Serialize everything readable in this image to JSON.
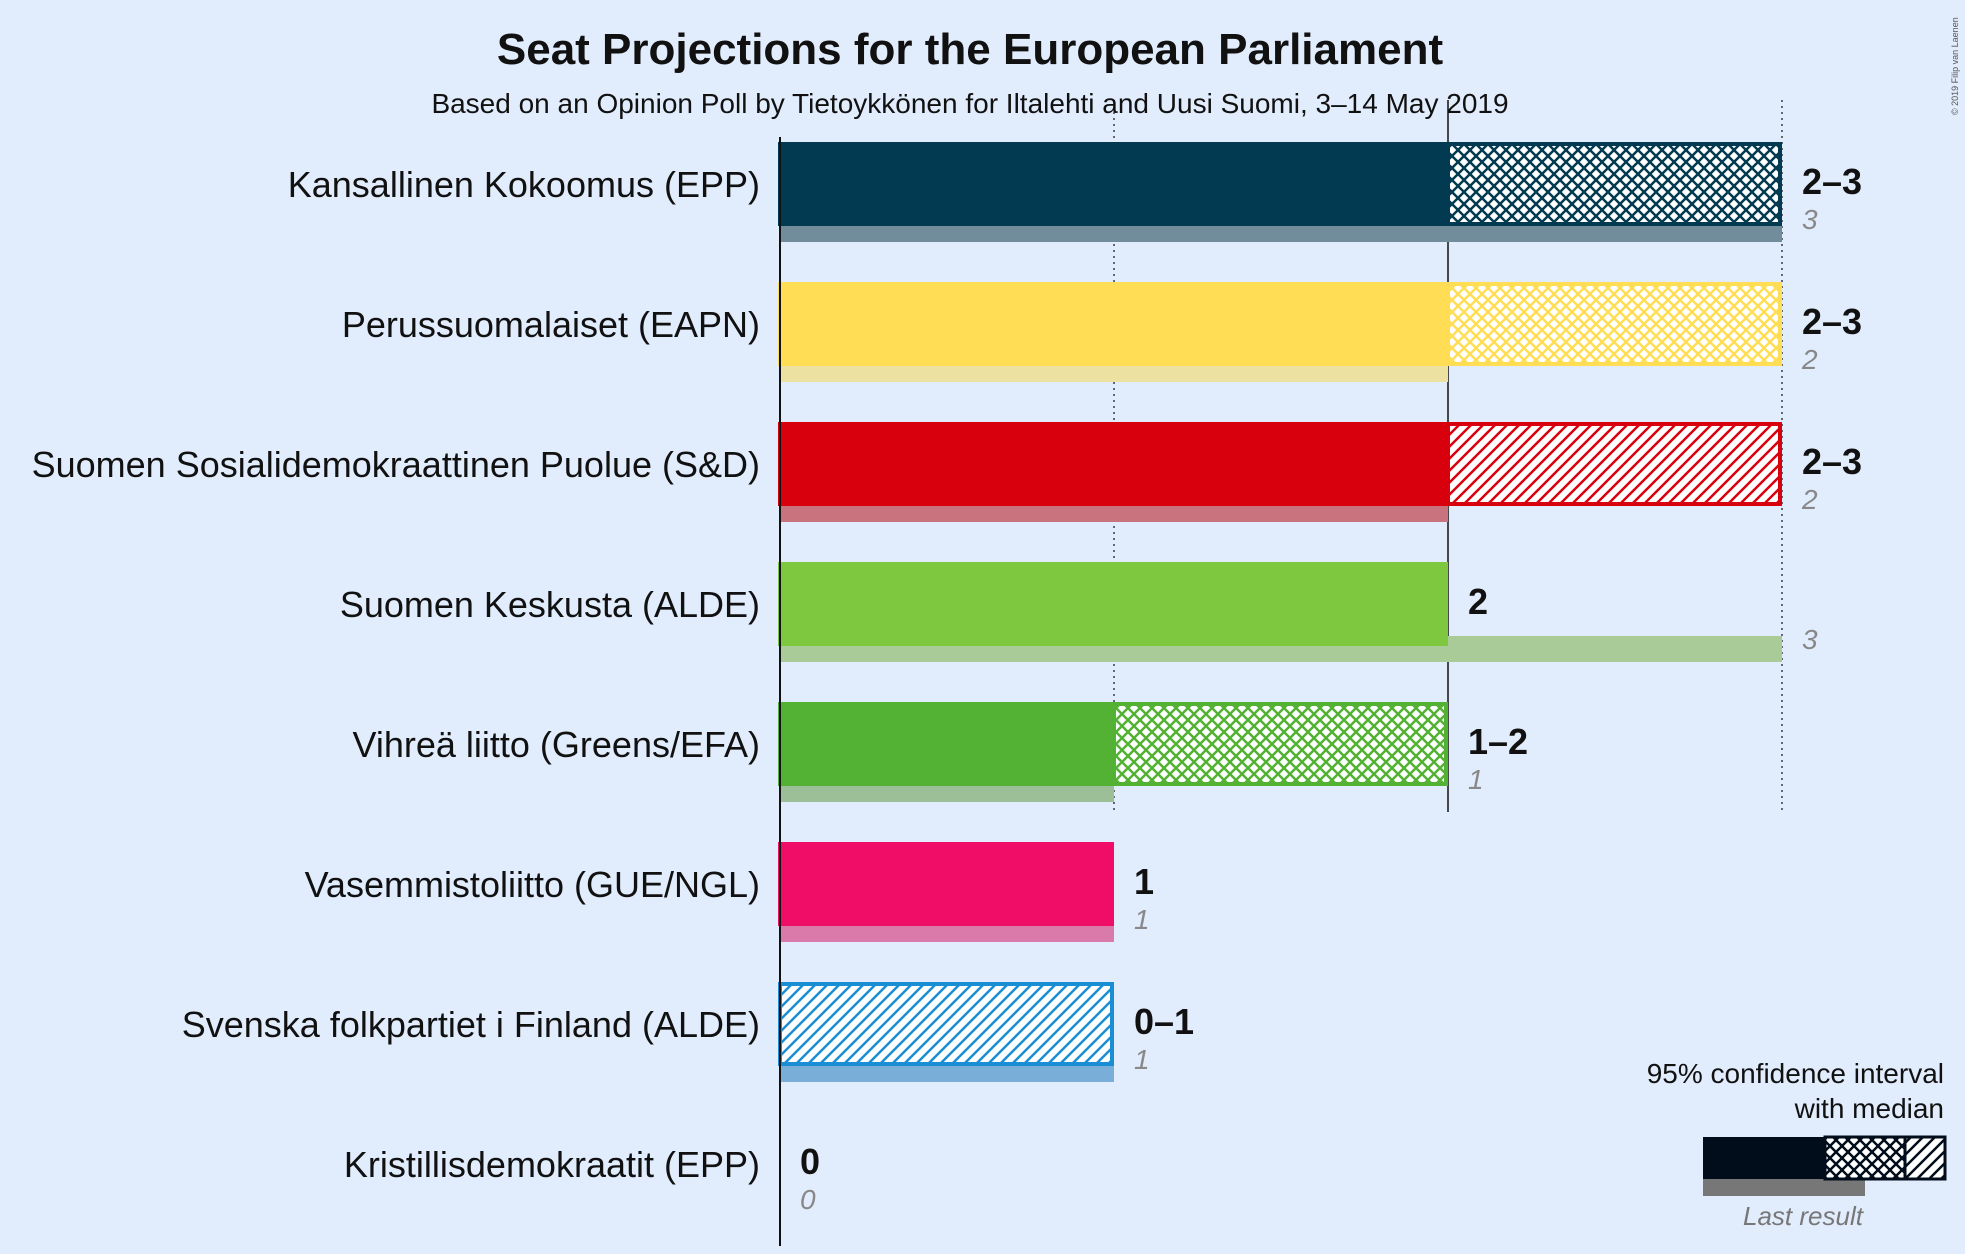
{
  "chart_data": {
    "type": "bar",
    "title": "Seat Projections for the European Parliament",
    "subtitle": "Based on an Opinion Poll by Tietoykkönen for Iltalehti and Uusi Suomi, 3–14 May 2019",
    "copyright": "© 2019 Filip van Laenen",
    "xlim": [
      0,
      3
    ],
    "categories": [
      "Kansallinen Kokoomus (EPP)",
      "Perussuomalaiset (EAPN)",
      "Suomen Sosialidemokraattinen Puolue (S&D)",
      "Suomen Keskusta (ALDE)",
      "Vihreä liitto (Greens/EFA)",
      "Vasemmistoliitto (GUE/NGL)",
      "Svenska folkpartiet i Finland (ALDE)",
      "Kristillisdemokraatit (EPP)"
    ],
    "parties": [
      {
        "name": "Kansallinen Kokoomus (EPP)",
        "low": 2,
        "median": 2,
        "high": 3,
        "last": 3,
        "range_label": "2–3",
        "last_label": "3",
        "color": "#023a51",
        "last_color": "#718c9a",
        "pattern": "cross"
      },
      {
        "name": "Perussuomalaiset (EAPN)",
        "low": 2,
        "median": 2,
        "high": 3,
        "last": 2,
        "range_label": "2–3",
        "last_label": "2",
        "color": "#ffdd55",
        "last_color": "#ece1a0",
        "pattern": "cross"
      },
      {
        "name": "Suomen Sosialidemokraattinen Puolue (S&D)",
        "low": 2,
        "median": 2,
        "high": 3,
        "last": 2,
        "range_label": "2–3",
        "last_label": "2",
        "color": "#d9000d",
        "last_color": "#c8737e",
        "pattern": "diag"
      },
      {
        "name": "Suomen Keskusta (ALDE)",
        "low": 2,
        "median": 2,
        "high": 2,
        "last": 3,
        "range_label": "2",
        "last_label": "3",
        "color": "#7ec840",
        "last_color": "#a8cb98",
        "pattern": "none"
      },
      {
        "name": "Vihreä liitto (Greens/EFA)",
        "low": 1,
        "median": 1,
        "high": 2,
        "last": 1,
        "range_label": "1–2",
        "last_label": "1",
        "color": "#53b233",
        "last_color": "#9dbf98",
        "pattern": "cross"
      },
      {
        "name": "Vasemmistoliitto (GUE/NGL)",
        "low": 1,
        "median": 1,
        "high": 1,
        "last": 1,
        "range_label": "1",
        "last_label": "1",
        "color": "#f00d67",
        "last_color": "#d97aab",
        "pattern": "none"
      },
      {
        "name": "Svenska folkpartiet i Finland (ALDE)",
        "low": 0,
        "median": 0,
        "high": 1,
        "last": 1,
        "range_label": "0–1",
        "last_label": "1",
        "color": "#1a8ed4",
        "last_color": "#79aed8",
        "pattern": "diag"
      },
      {
        "name": "Kristillisdemokraatit (EPP)",
        "low": 0,
        "median": 0,
        "high": 0,
        "last": 0,
        "range_label": "0",
        "last_label": "0",
        "color": "#1d4f91",
        "last_color": "#8aa0c0",
        "pattern": "none"
      }
    ],
    "legend": {
      "line1": "95% confidence interval",
      "line2": "with median",
      "last_result": "Last result",
      "placement": "bottom-right"
    }
  }
}
